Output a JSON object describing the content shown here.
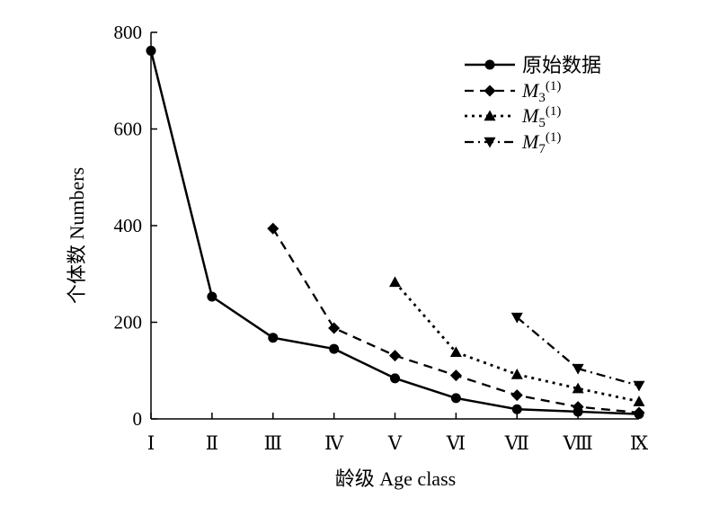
{
  "chart_data": {
    "type": "line",
    "categories": [
      "Ⅰ",
      "Ⅱ",
      "Ⅲ",
      "Ⅳ",
      "Ⅴ",
      "Ⅵ",
      "Ⅶ",
      "Ⅷ",
      "Ⅸ"
    ],
    "ylim": [
      0,
      800
    ],
    "yticks": [
      0,
      200,
      400,
      600,
      800
    ],
    "xlabel": "龄级 Age class",
    "ylabel": "个体数 Numbers",
    "grid": false,
    "legend_position": "top-right",
    "series": [
      {
        "name": "原始数据",
        "marker": "circle",
        "dash": "solid",
        "values": [
          762,
          253,
          168,
          145,
          84,
          43,
          20,
          15,
          10
        ]
      },
      {
        "name_main": "M",
        "name_sub": "3",
        "name_sup": "(1)",
        "marker": "diamond",
        "dash": "dashed",
        "values": [
          null,
          null,
          394,
          188,
          131,
          90,
          49,
          25,
          13
        ]
      },
      {
        "name_main": "M",
        "name_sub": "5",
        "name_sup": "(1)",
        "marker": "triangle-up",
        "dash": "dotted",
        "values": [
          null,
          null,
          null,
          null,
          283,
          138,
          92,
          63,
          36
        ]
      },
      {
        "name_main": "M",
        "name_sub": "7",
        "name_sup": "(1)",
        "marker": "triangle-down",
        "dash": "dash-dot",
        "values": [
          null,
          null,
          null,
          null,
          null,
          null,
          210,
          104,
          69
        ]
      }
    ]
  }
}
